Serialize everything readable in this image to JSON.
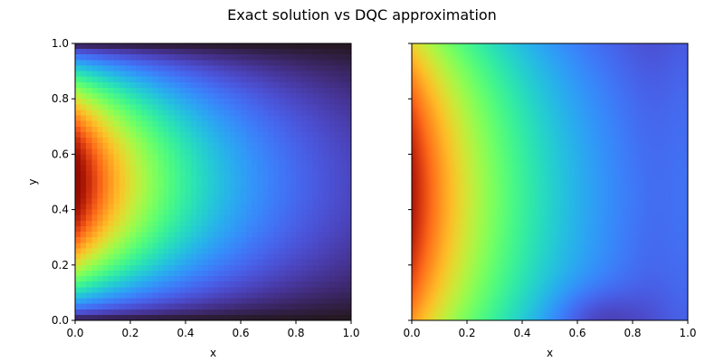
{
  "title": "Exact solution vs DQC approximation",
  "colormap": "turbo",
  "chart_data": [
    {
      "type": "heatmap",
      "panel": "left",
      "function": "exact",
      "xlabel": "x",
      "ylabel": "y",
      "xlim": [
        0.0,
        1.0
      ],
      "ylim": [
        0.0,
        1.0
      ],
      "x_ticks": [
        "0.0",
        "0.2",
        "0.4",
        "0.6",
        "0.8",
        "1.0"
      ],
      "y_ticks": [
        "0.0",
        "0.2",
        "0.4",
        "0.6",
        "0.8",
        "1.0"
      ],
      "show_y_tick_labels": true,
      "grid_resolution": 50,
      "description_of_field": "Max at x=0, y=0.5; decays in x, zero on y=0 and y=1 boundaries"
    },
    {
      "type": "heatmap",
      "panel": "right",
      "function": "dqc_approximation",
      "xlabel": "x",
      "ylabel": "",
      "xlim": [
        0.0,
        1.0
      ],
      "ylim": [
        0.0,
        1.0
      ],
      "x_ticks": [
        "0.0",
        "0.2",
        "0.4",
        "0.6",
        "0.8",
        "1.0"
      ],
      "y_ticks": [
        "0.0",
        "0.2",
        "0.4",
        "0.6",
        "0.8",
        "1.0"
      ],
      "show_y_tick_labels": false,
      "grid_resolution": 200,
      "description_of_field": "Smooth approximation; max at x=0, y≈0.45; does not vanish at y boundaries near x=0"
    }
  ]
}
